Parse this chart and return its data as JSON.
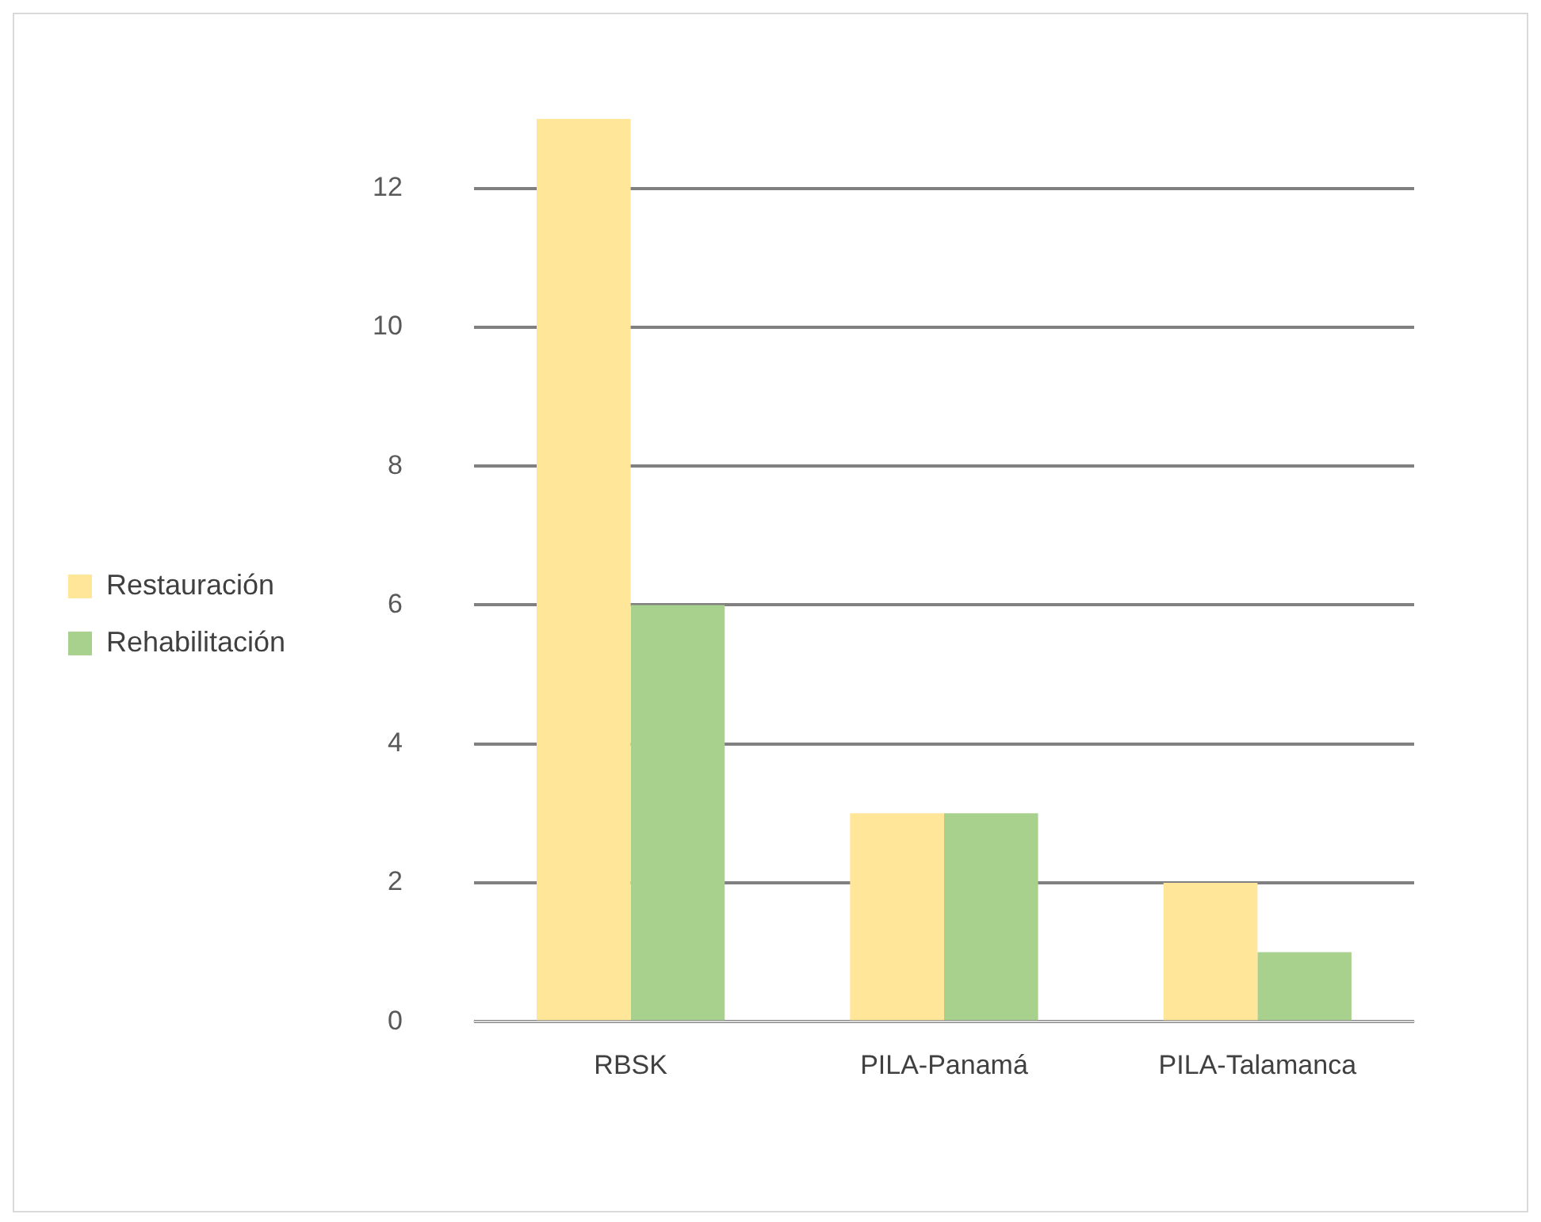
{
  "chart_data": {
    "type": "bar",
    "categories": [
      "RBSK",
      "PILA-Panamá",
      "PILA-Talamanca"
    ],
    "series": [
      {
        "name": "Restauración",
        "color": "#ffe699",
        "values": [
          13,
          3,
          2
        ]
      },
      {
        "name": "Rehabilitación",
        "color": "#a9d18e",
        "values": [
          6,
          3,
          1
        ]
      }
    ],
    "ylim": [
      0,
      13
    ],
    "yticks": [
      0,
      2,
      4,
      6,
      8,
      10,
      12
    ],
    "grid": "y",
    "legend": "left"
  }
}
